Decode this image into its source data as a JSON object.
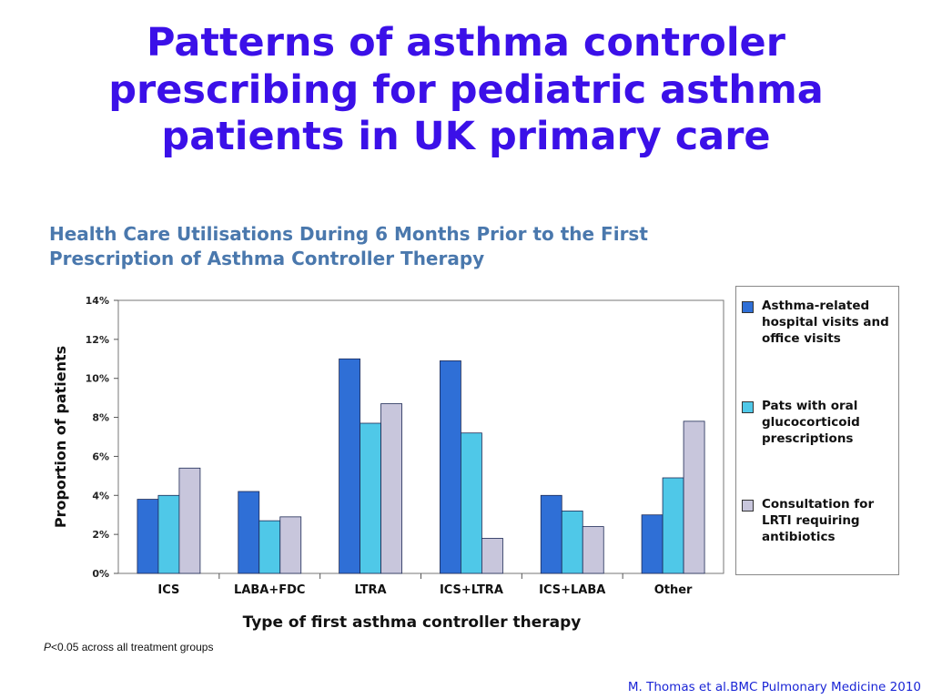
{
  "slide": {
    "title_lines": [
      "Patterns of asthma controler",
      "prescribing for pediatric asthma",
      "patients in UK primary care"
    ],
    "citation": "M. Thomas et al.BMC Pulmonary Medicine 2010",
    "footnote_p": "P",
    "footnote_rest": "<0.05 across all treatment groups"
  },
  "chart_data": {
    "type": "bar",
    "title_lines": [
      "Health Care Utilisations During 6 Months Prior to the First",
      "Prescription of Asthma Controller Therapy"
    ],
    "xlabel": "Type of first asthma controller therapy",
    "ylabel": "Proportion of patients",
    "ylim": [
      0,
      14
    ],
    "yticks": [
      "0%",
      "2%",
      "4%",
      "6%",
      "8%",
      "10%",
      "12%",
      "14%"
    ],
    "categories": [
      "ICS",
      "LABA+FDC",
      "LTRA",
      "ICS+LTRA",
      "ICS+LABA",
      "Other"
    ],
    "series": [
      {
        "name": "Asthma-related hospital visits and office visits",
        "color": "#2f6fd6",
        "values": [
          3.8,
          4.2,
          11.0,
          10.9,
          4.0,
          3.0
        ]
      },
      {
        "name": "Pats with oral glucocorticoid prescriptions",
        "color": "#4fc8e8",
        "values": [
          4.0,
          2.7,
          7.7,
          7.2,
          3.2,
          4.9
        ]
      },
      {
        "name": "Consultation for LRTI requiring antibiotics",
        "color": "#c8c6dc",
        "values": [
          5.4,
          2.9,
          8.7,
          1.8,
          2.4,
          7.8
        ]
      }
    ],
    "legend_placement": "right",
    "grid": false
  }
}
